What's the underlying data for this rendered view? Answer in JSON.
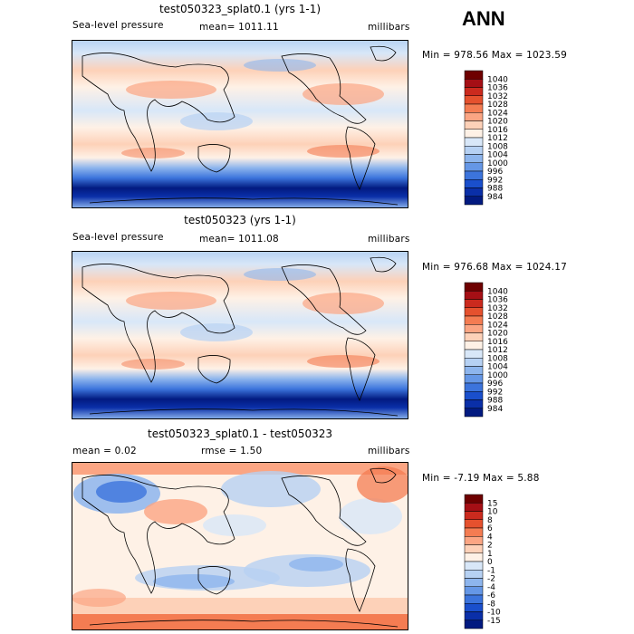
{
  "season": "ANN",
  "panels": [
    {
      "title": "test050323_splat0.1 (yrs 1-1)",
      "left_label": "Sea-level pressure",
      "center_label": "mean= 1011.11",
      "units": "millibars",
      "minmax": "Min = 978.56 Max = 1023.59"
    },
    {
      "title": "test050323 (yrs 1-1)",
      "left_label": "Sea-level pressure",
      "center_label": "mean= 1011.08",
      "units": "millibars",
      "minmax": "Min = 976.68 Max = 1024.17"
    },
    {
      "title": "test050323_splat0.1 - test050323",
      "left_label": "mean =   0.02",
      "center_label": "rmse =   1.50",
      "units": "millibars",
      "minmax": "Min =  -7.19 Max =   5.88"
    }
  ],
  "chart_data": [
    {
      "type": "heatmap",
      "title": "test050323_splat0.1 (yrs 1-1)",
      "variable": "Sea-level pressure",
      "units": "millibars",
      "mean": 1011.11,
      "min": 978.56,
      "max": 1023.59,
      "colorbar_levels": [
        "1040",
        "1036",
        "1032",
        "1028",
        "1024",
        "1020",
        "1016",
        "1012",
        "1008",
        "1004",
        "1000",
        "996",
        "992",
        "988",
        "984"
      ],
      "colorbar_colors": [
        "#6e0000",
        "#a50f15",
        "#cb2a1e",
        "#e5512e",
        "#f47c52",
        "#fba583",
        "#fdd1b8",
        "#fef1e6",
        "#d8e7f8",
        "#b6d1f3",
        "#8db5ed",
        "#6597e6",
        "#3c74dc",
        "#1a4fcc",
        "#0a2fa8",
        "#021a80"
      ]
    },
    {
      "type": "heatmap",
      "title": "test050323 (yrs 1-1)",
      "variable": "Sea-level pressure",
      "units": "millibars",
      "mean": 1011.08,
      "min": 976.68,
      "max": 1024.17,
      "colorbar_levels": [
        "1040",
        "1036",
        "1032",
        "1028",
        "1024",
        "1020",
        "1016",
        "1012",
        "1008",
        "1004",
        "1000",
        "996",
        "992",
        "988",
        "984"
      ],
      "colorbar_colors": [
        "#6e0000",
        "#a50f15",
        "#cb2a1e",
        "#e5512e",
        "#f47c52",
        "#fba583",
        "#fdd1b8",
        "#fef1e6",
        "#d8e7f8",
        "#b6d1f3",
        "#8db5ed",
        "#6597e6",
        "#3c74dc",
        "#1a4fcc",
        "#0a2fa8",
        "#021a80"
      ]
    },
    {
      "type": "heatmap",
      "title": "test050323_splat0.1 - test050323",
      "units": "millibars",
      "mean": 0.02,
      "rmse": 1.5,
      "min": -7.19,
      "max": 5.88,
      "colorbar_levels": [
        "15",
        "10",
        "8",
        "6",
        "4",
        "2",
        "1",
        "0",
        "-1",
        "-2",
        "-4",
        "-6",
        "-8",
        "-10",
        "-15"
      ],
      "colorbar_colors": [
        "#6e0000",
        "#a50f15",
        "#cb2a1e",
        "#e5512e",
        "#f47c52",
        "#fba583",
        "#fdd1b8",
        "#fef1e6",
        "#d8e7f8",
        "#b6d1f3",
        "#8db5ed",
        "#6597e6",
        "#3c74dc",
        "#1a4fcc",
        "#0a2fa8",
        "#021a80"
      ]
    }
  ]
}
